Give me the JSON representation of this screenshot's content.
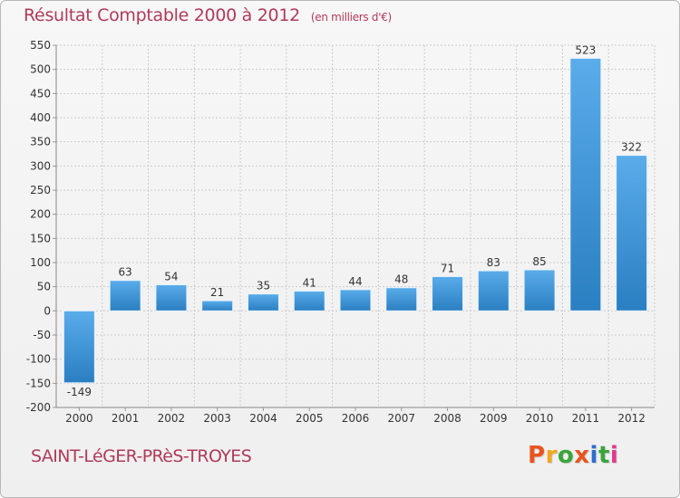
{
  "header": {
    "title": "Résultat Comptable 2000 à 2012",
    "subtitle": "(en milliers d'€)"
  },
  "footer": {
    "commune": "SAINT-LéGER-PRèS-TROYES",
    "brand": "Proxiti",
    "brand_letters": [
      "P",
      "r",
      "o",
      "x",
      "i",
      "t",
      "i"
    ]
  },
  "colors": {
    "title": "#b03a5a",
    "bar_top": "#5aacea",
    "bar_bottom": "#2a7fc2",
    "grid": "#cccccc",
    "axis_text": "#333333",
    "logo": [
      "#e8541f",
      "#f2a81c",
      "#3aa53a",
      "#e8541f",
      "#2d6fd0",
      "#3aa53a",
      "#e03a8e"
    ]
  },
  "chart_data": {
    "type": "bar",
    "title": "Résultat Comptable 2000 à 2012",
    "ylabel": "en milliers d'€",
    "xlabel": "",
    "categories": [
      "2000",
      "2001",
      "2002",
      "2003",
      "2004",
      "2005",
      "2006",
      "2007",
      "2008",
      "2009",
      "2010",
      "2011",
      "2012"
    ],
    "values": [
      -149,
      63,
      54,
      21,
      35,
      41,
      44,
      48,
      71,
      83,
      85,
      523,
      322
    ],
    "ylim": [
      -200,
      550
    ],
    "yticks": [
      -200,
      -150,
      -100,
      -50,
      0,
      50,
      100,
      150,
      200,
      250,
      300,
      350,
      400,
      450,
      500,
      550
    ],
    "grid": true,
    "legend": "none"
  }
}
